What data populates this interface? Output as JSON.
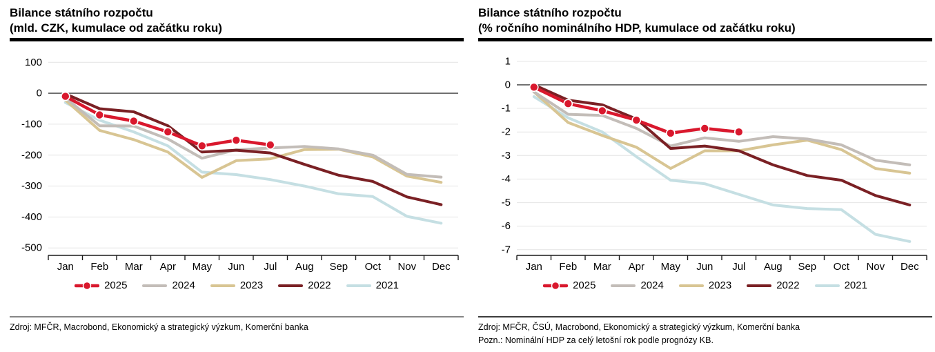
{
  "panels": [
    {
      "title_line1": "Bilance státního rozpočtu",
      "title_line2": "(mld. CZK, kumulace od začátku roku)",
      "source": "Zdroj: MFČR, Macrobond, Ekonomický a strategický výzkum, Komerční banka",
      "note": "",
      "divider_color": "#868686"
    },
    {
      "title_line1": "Bilance státního rozpočtu",
      "title_line2": "(% ročního nominálního HDP, kumulace od začátku roku)",
      "source": "Zdroj: MFČR, ČSÚ, Macrobond, Ekonomický a strategický výzkum, Komerční banka",
      "note": "Pozn.: Nominální HDP za celý letošní rok podle prognózy KB.",
      "divider_color": "#3c3c3c"
    }
  ],
  "chart_data": [
    {
      "type": "line",
      "title": "Bilance státního rozpočtu (mld. CZK, kumulace od začátku roku)",
      "categories": [
        "Jan",
        "Feb",
        "Mar",
        "Apr",
        "May",
        "Jun",
        "Jul",
        "Aug",
        "Sep",
        "Oct",
        "Nov",
        "Dec"
      ],
      "xlabel": "",
      "ylabel": "mld. CZK",
      "ylim": [
        -500,
        100
      ],
      "yticks": [
        100,
        0,
        -100,
        -200,
        -300,
        -400,
        -500
      ],
      "grid": true,
      "zero_line": true,
      "legend_position": "bottom",
      "series": [
        {
          "name": "2025",
          "color": "#d9182d",
          "marker": true,
          "z": 5,
          "values": [
            -10,
            -70,
            -90,
            -125,
            -170,
            -152,
            -167
          ]
        },
        {
          "name": "2024",
          "color": "#c3bdb8",
          "marker": false,
          "z": 3,
          "values": [
            -15,
            -105,
            -106,
            -148,
            -210,
            -183,
            -177,
            -172,
            -180,
            -200,
            -262,
            -271
          ]
        },
        {
          "name": "2023",
          "color": "#d8c593",
          "marker": false,
          "z": 2,
          "values": [
            -22,
            -120,
            -150,
            -190,
            -272,
            -218,
            -212,
            -182,
            -181,
            -206,
            -268,
            -288
          ]
        },
        {
          "name": "2022",
          "color": "#7a2024",
          "marker": false,
          "z": 4,
          "values": [
            -2,
            -50,
            -60,
            -105,
            -190,
            -184,
            -193,
            -230,
            -265,
            -285,
            -335,
            -360
          ]
        },
        {
          "name": "2021",
          "color": "#c5dfe3",
          "marker": false,
          "z": 1,
          "values": [
            -30,
            -87,
            -125,
            -170,
            -255,
            -263,
            -279,
            -300,
            -325,
            -334,
            -398,
            -420
          ]
        }
      ]
    },
    {
      "type": "line",
      "title": "Bilance státního rozpočtu (% ročního nominálního HDP, kumulace od začátku roku)",
      "categories": [
        "Jan",
        "Feb",
        "Mar",
        "Apr",
        "May",
        "Jun",
        "Jul",
        "Aug",
        "Sep",
        "Oct",
        "Nov",
        "Dec"
      ],
      "xlabel": "",
      "ylabel": "% ročního nominálního HDP",
      "ylim": [
        -7,
        1
      ],
      "yticks": [
        1,
        0,
        -1,
        -2,
        -3,
        -4,
        -5,
        -6,
        -7
      ],
      "grid": true,
      "zero_line": true,
      "legend_position": "bottom",
      "series": [
        {
          "name": "2025",
          "color": "#d9182d",
          "marker": true,
          "z": 5,
          "values": [
            -0.1,
            -0.8,
            -1.1,
            -1.5,
            -2.05,
            -1.85,
            -2.0
          ]
        },
        {
          "name": "2024",
          "color": "#c3bdb8",
          "marker": false,
          "z": 3,
          "values": [
            -0.3,
            -1.25,
            -1.3,
            -1.85,
            -2.6,
            -2.25,
            -2.4,
            -2.2,
            -2.3,
            -2.55,
            -3.2,
            -3.4
          ]
        },
        {
          "name": "2023",
          "color": "#d8c593",
          "marker": false,
          "z": 2,
          "values": [
            -0.3,
            -1.6,
            -2.15,
            -2.65,
            -3.55,
            -2.8,
            -2.8,
            -2.55,
            -2.35,
            -2.75,
            -3.55,
            -3.75
          ]
        },
        {
          "name": "2022",
          "color": "#7a2024",
          "marker": false,
          "z": 4,
          "values": [
            0.0,
            -0.65,
            -0.85,
            -1.45,
            -2.7,
            -2.6,
            -2.8,
            -3.4,
            -3.85,
            -4.05,
            -4.7,
            -5.1
          ]
        },
        {
          "name": "2021",
          "color": "#c5dfe3",
          "marker": false,
          "z": 1,
          "values": [
            -0.5,
            -1.4,
            -2.0,
            -3.05,
            -4.05,
            -4.2,
            -4.65,
            -5.1,
            -5.25,
            -5.3,
            -6.35,
            -6.65
          ]
        }
      ]
    }
  ],
  "styles": {
    "accent_red": "#d9182d",
    "grid_color": "#e4e4e4",
    "zero_line_color": "#3a3a3a",
    "axis_color": "#1a1a1a",
    "title_bar_color": "#000000"
  }
}
